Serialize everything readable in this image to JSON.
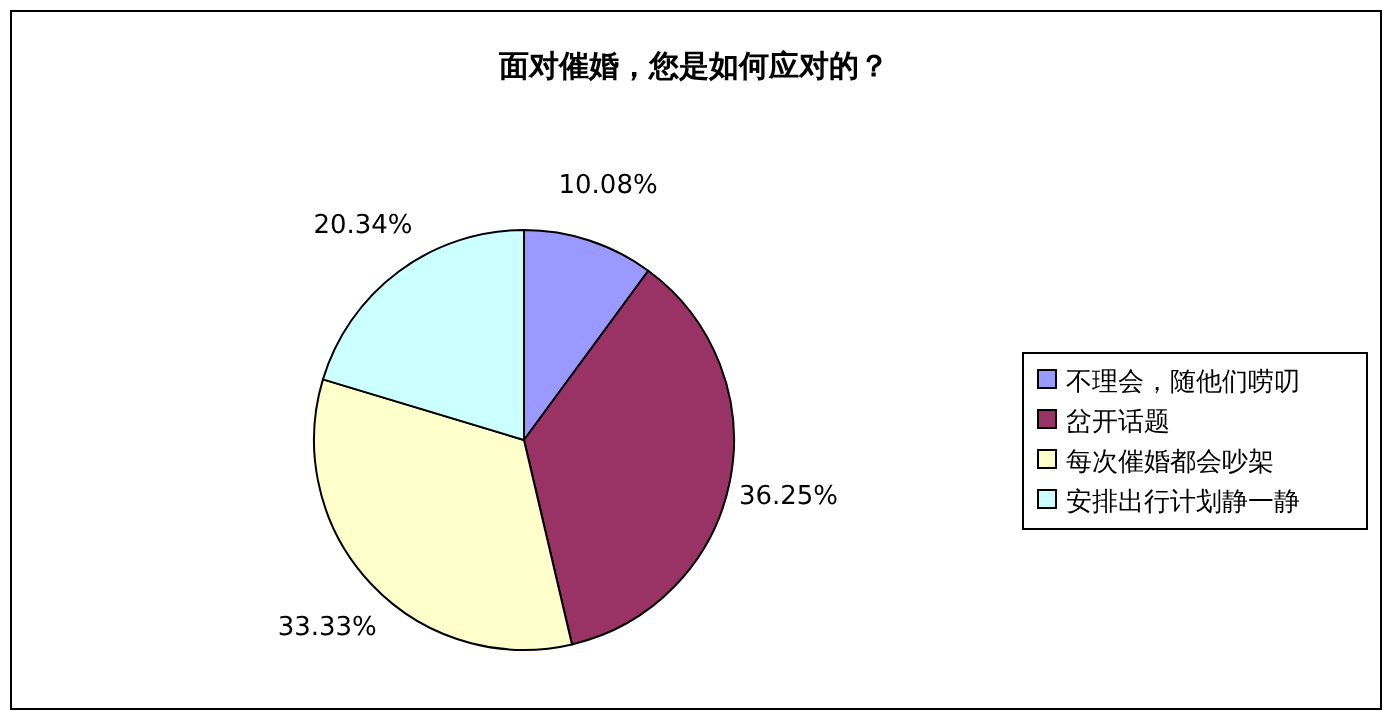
{
  "chart_data": {
    "type": "pie",
    "title": "面对催婚，您是如何应对的？",
    "categories": [
      "不理会，随他们唠叨",
      "岔开话题",
      "每次催婚都会吵架",
      "安排出行计划静一静"
    ],
    "values": [
      10.08,
      36.25,
      33.33,
      20.34
    ],
    "value_labels": [
      "10.08%",
      "36.25%",
      "33.33%",
      "20.34%"
    ],
    "colors": [
      "#9999ff",
      "#993366",
      "#ffffcc",
      "#ccffff"
    ],
    "legend": "right"
  }
}
